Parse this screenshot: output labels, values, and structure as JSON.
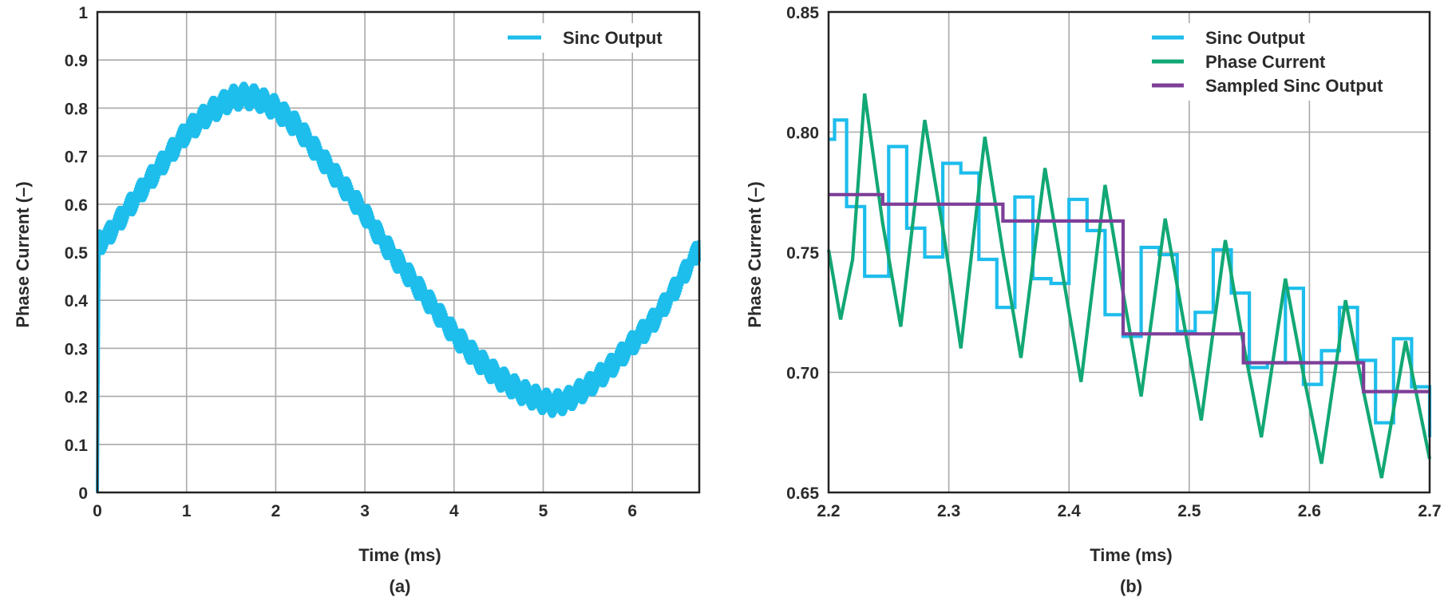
{
  "colors": {
    "sinc": "#1dbdec",
    "phase": "#12a874",
    "sampled": "#7d3f98",
    "grid": "#a9a9a9",
    "frame": "#222222",
    "text": "#2b2b2b"
  },
  "chart_data": [
    {
      "type": "line",
      "panel_label": "(a)",
      "xlabel": "Time (ms)",
      "ylabel": "Phase Current (–)",
      "xlim": [
        0,
        6.75
      ],
      "ylim": [
        0,
        1
      ],
      "xticks": [
        0,
        1,
        2,
        3,
        4,
        5,
        6
      ],
      "xtick_labels": [
        "0",
        "1",
        "2",
        "3",
        "4",
        "5",
        "6"
      ],
      "yticks": [
        0,
        0.1,
        0.2,
        0.3,
        0.4,
        0.5,
        0.6,
        0.7,
        0.8,
        0.9,
        1
      ],
      "ytick_labels": [
        "0",
        "0.1",
        "0.2",
        "0.3",
        "0.4",
        "0.5",
        "0.6",
        "0.7",
        "0.8",
        "0.9",
        "1"
      ],
      "grid": true,
      "legend": "top-right",
      "series": [
        {
          "name": "Sinc Output",
          "color_key": "sinc",
          "ripple": 0.03,
          "x": [
            0,
            0.02,
            0.1,
            0.3,
            0.5,
            0.75,
            1.0,
            1.25,
            1.5,
            1.65,
            1.8,
            2.0,
            2.25,
            2.5,
            2.75,
            3.0,
            3.25,
            3.5,
            3.75,
            4.0,
            4.25,
            4.5,
            4.75,
            5.0,
            5.1,
            5.25,
            5.5,
            5.75,
            6.0,
            6.25,
            6.5,
            6.75
          ],
          "y": [
            0,
            0.52,
            0.53,
            0.58,
            0.63,
            0.69,
            0.75,
            0.79,
            0.82,
            0.825,
            0.82,
            0.8,
            0.76,
            0.7,
            0.64,
            0.58,
            0.51,
            0.45,
            0.39,
            0.33,
            0.28,
            0.24,
            0.21,
            0.19,
            0.185,
            0.19,
            0.22,
            0.26,
            0.31,
            0.36,
            0.43,
            0.51
          ]
        }
      ]
    },
    {
      "type": "line",
      "panel_label": "(b)",
      "xlabel": "Time (ms)",
      "ylabel": "Phase Current (–)",
      "xlim": [
        2.2,
        2.7
      ],
      "ylim": [
        0.65,
        0.85
      ],
      "xticks": [
        2.2,
        2.3,
        2.4,
        2.5,
        2.6,
        2.7
      ],
      "xtick_labels": [
        "2.2",
        "2.3",
        "2.4",
        "2.5",
        "2.6",
        "2.7"
      ],
      "yticks": [
        0.65,
        0.7,
        0.75,
        0.8,
        0.85
      ],
      "ytick_labels": [
        "0.65",
        "0.70",
        "0.75",
        "0.80",
        "0.85"
      ],
      "grid": true,
      "legend": "top-right",
      "series": [
        {
          "name": "Sinc Output",
          "color_key": "sinc",
          "step": true,
          "x": [
            2.2,
            2.205,
            2.215,
            2.23,
            2.25,
            2.265,
            2.28,
            2.295,
            2.31,
            2.325,
            2.34,
            2.355,
            2.37,
            2.385,
            2.4,
            2.415,
            2.43,
            2.445,
            2.46,
            2.475,
            2.49,
            2.505,
            2.52,
            2.535,
            2.55,
            2.565,
            2.58,
            2.595,
            2.61,
            2.625,
            2.64,
            2.655,
            2.67,
            2.685,
            2.7
          ],
          "y": [
            0.797,
            0.805,
            0.769,
            0.74,
            0.794,
            0.76,
            0.748,
            0.787,
            0.783,
            0.747,
            0.727,
            0.773,
            0.739,
            0.737,
            0.772,
            0.759,
            0.724,
            0.715,
            0.752,
            0.749,
            0.717,
            0.725,
            0.751,
            0.733,
            0.702,
            0.704,
            0.735,
            0.695,
            0.709,
            0.727,
            0.705,
            0.679,
            0.714,
            0.694,
            0.673
          ]
        },
        {
          "name": "Phase Current",
          "color_key": "phase",
          "x": [
            2.2,
            2.21,
            2.22,
            2.23,
            2.245,
            2.26,
            2.28,
            2.295,
            2.31,
            2.33,
            2.345,
            2.36,
            2.38,
            2.395,
            2.41,
            2.43,
            2.445,
            2.46,
            2.48,
            2.495,
            2.51,
            2.53,
            2.545,
            2.56,
            2.58,
            2.595,
            2.61,
            2.63,
            2.645,
            2.66,
            2.68,
            2.7
          ],
          "y": [
            0.751,
            0.722,
            0.747,
            0.816,
            0.762,
            0.719,
            0.805,
            0.76,
            0.71,
            0.798,
            0.75,
            0.706,
            0.785,
            0.74,
            0.696,
            0.778,
            0.733,
            0.69,
            0.764,
            0.722,
            0.68,
            0.755,
            0.712,
            0.673,
            0.739,
            0.699,
            0.662,
            0.73,
            0.692,
            0.656,
            0.713,
            0.664
          ]
        },
        {
          "name": "Sampled Sinc Output",
          "color_key": "sampled",
          "step": true,
          "x": [
            2.2,
            2.245,
            2.345,
            2.445,
            2.545,
            2.645,
            2.7
          ],
          "y": [
            0.774,
            0.77,
            0.763,
            0.716,
            0.704,
            0.692,
            0.692
          ]
        }
      ]
    }
  ]
}
